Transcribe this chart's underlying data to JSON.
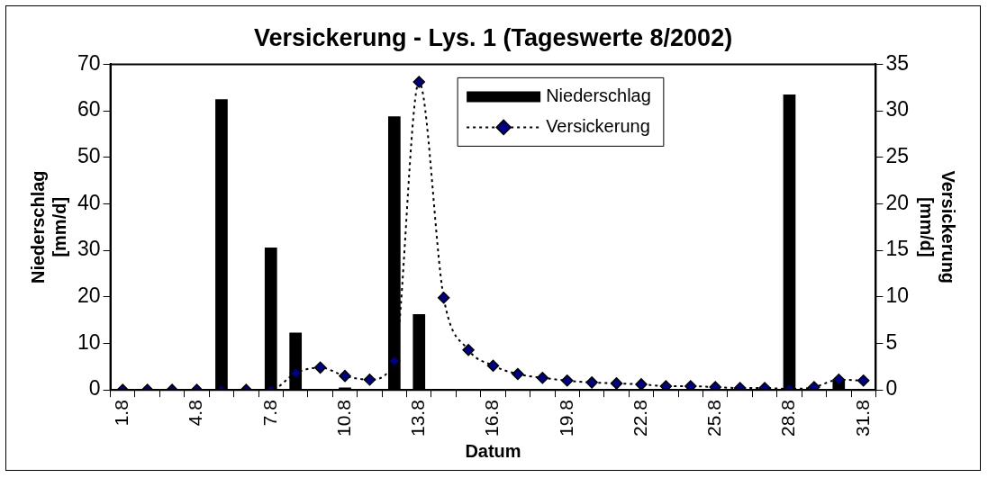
{
  "chart_data": {
    "type": "bar",
    "title": "Versickerung - Lys. 1 (Tageswerte 8/2002)",
    "xlabel": "Datum",
    "ylabel": "Niederschlag [mm/d]",
    "y2label": "Versickerung [mm/d]",
    "categories": [
      "1.8",
      null,
      null,
      "4.8",
      null,
      null,
      "7.8",
      null,
      null,
      "10.8",
      null,
      null,
      "13.8",
      null,
      null,
      "16.8",
      null,
      null,
      "19.8",
      null,
      null,
      "22.8",
      null,
      null,
      "25.8",
      null,
      null,
      "28.8",
      null,
      null,
      "31.8"
    ],
    "series": [
      {
        "name": "Niederschlag",
        "color": "#000000",
        "values": [
          0,
          0,
          0,
          0,
          62.5,
          0,
          30.6,
          12.3,
          0,
          0.5,
          0,
          58.8,
          16.3,
          0,
          0,
          0,
          0,
          0,
          0,
          0,
          0,
          0,
          0,
          0,
          0,
          0,
          0,
          63.5,
          0,
          2,
          0
        ]
      },
      {
        "name": "Versickerung",
        "type": "line",
        "axis": "y2",
        "color": "#000080",
        "line_style": "dotted",
        "marker": "diamond",
        "values": [
          0,
          0,
          0,
          0,
          0,
          0,
          0,
          1.8,
          2.4,
          1.5,
          1.1,
          3.1,
          33.1,
          9.9,
          4.3,
          2.6,
          1.7,
          1.3,
          1.0,
          0.8,
          0.7,
          0.6,
          0.4,
          0.4,
          0.3,
          0.2,
          0.2,
          0.1,
          0.3,
          1.1,
          1.0
        ]
      }
    ],
    "ylim": [
      0,
      70
    ],
    "yticks": [
      0,
      10,
      20,
      30,
      40,
      50,
      60,
      70
    ],
    "y2lim": [
      0,
      35
    ],
    "y2ticks": [
      0,
      5,
      10,
      15,
      20,
      25,
      30,
      35
    ],
    "legend": "top"
  }
}
